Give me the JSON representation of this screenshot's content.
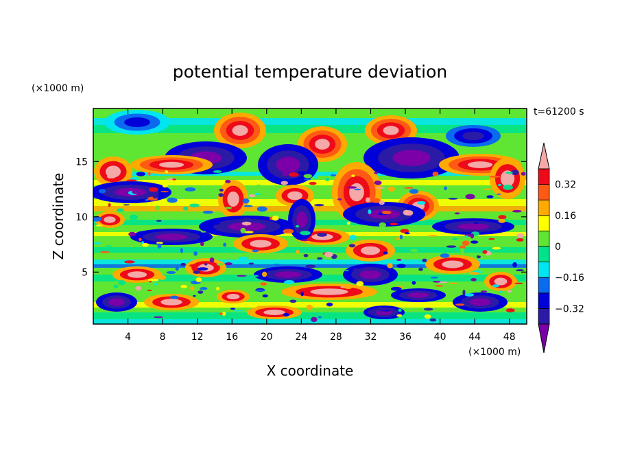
{
  "chart_data": {
    "type": "heatmap",
    "title": "potential temperature deviation",
    "xlabel": "X coordinate",
    "ylabel": "Z coordinate",
    "x_unit": "(×1000 m)",
    "y_unit": "(×1000 m)",
    "time_label": "t=61200 s",
    "xlim": [
      0,
      50
    ],
    "ylim": [
      0.3,
      19.8
    ],
    "x_ticks": [
      4,
      8,
      12,
      16,
      20,
      24,
      28,
      32,
      36,
      40,
      44,
      48
    ],
    "x_tick_labels": [
      "4",
      "8",
      "12",
      "16",
      "20",
      "24",
      "28",
      "32",
      "36",
      "40",
      "44",
      "48"
    ],
    "y_ticks": [
      5,
      10,
      15
    ],
    "y_tick_labels": [
      "5",
      "10",
      "15"
    ],
    "colorbar": {
      "extend": "both",
      "levels": [
        -0.4,
        -0.32,
        -0.24,
        -0.16,
        -0.08,
        0,
        0.08,
        0.16,
        0.24,
        0.32,
        0.4
      ],
      "tick_values": [
        0.32,
        0.16,
        0,
        -0.16,
        -0.32
      ],
      "tick_labels": [
        "0.32",
        "0.16",
        "0",
        "−0.16",
        "−0.32"
      ],
      "colors": [
        "#7b00a8",
        "#2b1aa6",
        "#0000d8",
        "#0a6af0",
        "#00e6f0",
        "#00e38c",
        "#5ee632",
        "#ffff00",
        "#ffaa00",
        "#ff5a14",
        "#ee0a18",
        "#f5a8a8"
      ]
    },
    "grid": false
  }
}
